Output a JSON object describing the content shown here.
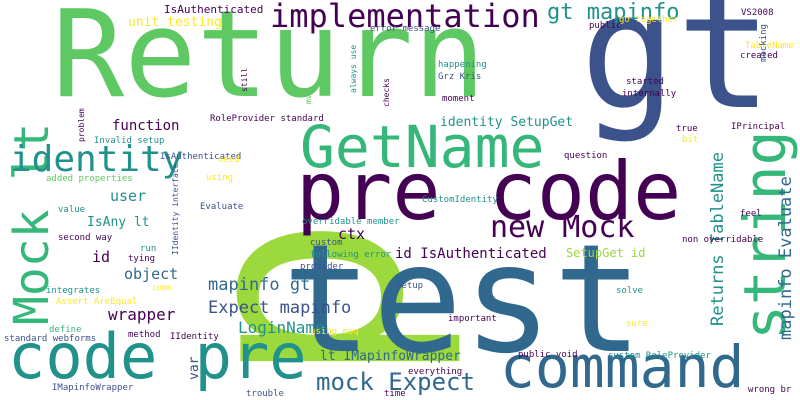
{
  "palette": {
    "background": "#ffffff",
    "dark_purple": "#440154",
    "indigo": "#3b528b",
    "blue": "#31688e",
    "teal": "#21918c",
    "sea_green": "#35b779",
    "green": "#5ec962",
    "lime": "#9bd93c",
    "yellow": "#fde725"
  },
  "words": [
    "p",
    "test",
    "Return",
    "gt",
    "pre code",
    "string",
    "GetName",
    "command",
    "code pre",
    "Mock lt",
    "identity",
    "implementation",
    "new Mock",
    "gt mapinfo",
    "mock Expect",
    "Returns TableName",
    "mapinfo Evaluate",
    "Expect mapinfo",
    "mapinfo gt",
    "LoginName",
    "wrapper",
    "object",
    "user",
    "function",
    "id",
    "ctx",
    "lt IMapinfoWrapper",
    "var",
    "id IsAuthenticated",
    "identity SetupGet",
    "unit testing",
    "IsAuthenticated",
    "IsAny lt",
    "SetupGet id",
    "RoleProvider standard",
    "Invalid setup",
    "IsAuthenticated",
    "added properties",
    "IIdentity interface",
    "value",
    "second way",
    "integrates",
    "Assert AreEqual",
    "define",
    "standard webforms",
    "IMapinfoWrapper",
    "method",
    "IIdentity",
    "tying",
    "comm",
    "run",
    "need",
    "using",
    "Evaluate",
    "custom",
    "provider",
    "following error",
    "overridable member",
    "CustomIdentity",
    "Setup",
    "using moq",
    "important",
    "everything",
    "trouble",
    "time",
    "public void",
    "custom RoleProvider",
    "wrong br",
    "solve",
    "sure",
    "non overridable",
    "feel",
    "question",
    "true",
    "bit",
    "IPrincipal",
    "internally",
    "started",
    "created",
    "TableName",
    "mocking",
    "VS2008",
    "go together",
    "public",
    "error message",
    "always use",
    "still",
    "mvc",
    "checks",
    "happening",
    "Grz Kris",
    "moment",
    "problem"
  ]
}
